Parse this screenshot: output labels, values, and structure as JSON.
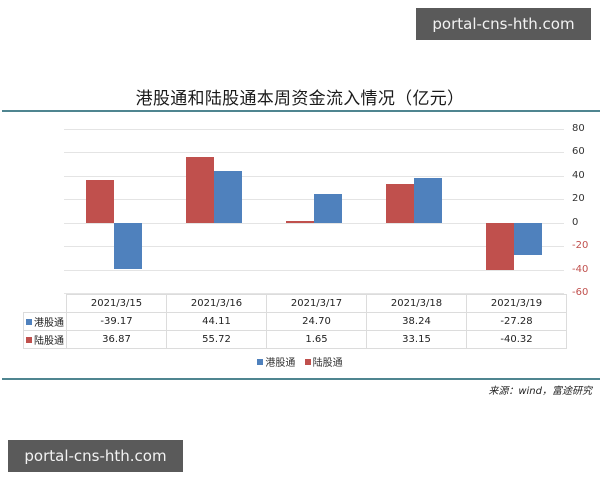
{
  "watermarks": {
    "top": "portal-cns-hth.com",
    "bottom": "portal-cns-hth.com"
  },
  "colors": {
    "hk": "#4f81bd",
    "lu": "#c0504d",
    "rule": "#4f8590",
    "negative_tick": "#c0504d"
  },
  "chart_data": {
    "type": "bar",
    "title": "港股通和陆股通本周资金流入情况（亿元）",
    "categories": [
      "2021/3/15",
      "2021/3/16",
      "2021/3/17",
      "2021/3/18",
      "2021/3/19"
    ],
    "series": [
      {
        "name": "港股通",
        "color": "#4f81bd",
        "values": [
          -39.17,
          44.11,
          24.7,
          38.24,
          -27.28
        ]
      },
      {
        "name": "陆股通",
        "color": "#c0504d",
        "values": [
          36.87,
          55.72,
          1.65,
          33.15,
          -40.32
        ]
      }
    ],
    "ylim": [
      -60,
      80
    ],
    "yticks": [
      "80",
      "60",
      "40",
      "20",
      "0",
      "-20",
      "-40",
      "-60"
    ],
    "y_axis_position": "right",
    "grid": true,
    "legend_position": "bottom",
    "xlabel": "",
    "ylabel": ""
  },
  "table": {
    "headers": [
      "2021/3/15",
      "2021/3/16",
      "2021/3/17",
      "2021/3/18",
      "2021/3/19"
    ],
    "rows": [
      {
        "label": "港股通",
        "values": [
          "-39.17",
          "44.11",
          "24.70",
          "38.24",
          "-27.28"
        ]
      },
      {
        "label": "陆股通",
        "values": [
          "36.87",
          "55.72",
          "1.65",
          "33.15",
          "-40.32"
        ]
      }
    ]
  },
  "legend": {
    "items": [
      "港股通",
      "陆股通"
    ]
  },
  "source": "来源：wind，富途研究"
}
